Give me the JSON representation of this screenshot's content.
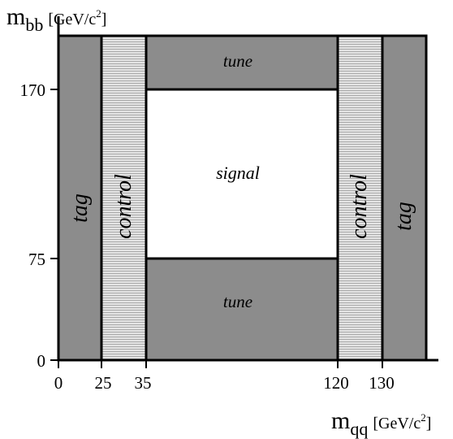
{
  "diagram": {
    "y_axis_label": {
      "main": "m",
      "sub": "bb",
      "units": "[GeV/c",
      "units_sup": "2",
      "units_close": "]"
    },
    "x_axis_label": {
      "main": "m",
      "sub": "qq",
      "units": "[GeV/c",
      "units_sup": "2",
      "units_close": "]"
    },
    "y_ticks": [
      "170",
      "75",
      "0"
    ],
    "x_ticks": [
      "0",
      "25",
      "35",
      "120",
      "130"
    ],
    "regions": {
      "tag_left": "tag",
      "control_left": "control",
      "tune_top": "tune",
      "signal": "signal",
      "tune_bottom": "tune",
      "control_right": "control",
      "tag_right": "tag"
    },
    "colors": {
      "tag_fill": "#8c8c8c",
      "tune_fill": "#8c8c8c",
      "control_fill": "#e2e2e2",
      "signal_fill": "#ffffff",
      "outline": "#000000"
    }
  }
}
